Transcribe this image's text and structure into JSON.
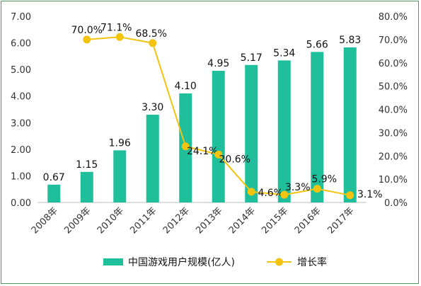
{
  "chart_data": {
    "type": "bar+line",
    "categories": [
      "2008年",
      "2009年",
      "2010年",
      "2011年",
      "2012年",
      "2013年",
      "2014年",
      "2015年",
      "2016年",
      "2017年"
    ],
    "series": [
      {
        "name": "中国游戏用户规模(亿人)",
        "type": "bar",
        "axis": "left",
        "color": "#1fbf9c",
        "values": [
          0.67,
          1.15,
          1.96,
          3.3,
          4.1,
          4.95,
          5.17,
          5.34,
          5.66,
          5.83
        ],
        "labels": [
          "0.67",
          "1.15",
          "1.96",
          "3.30",
          "4.10",
          "4.95",
          "5.17",
          "5.34",
          "5.66",
          "5.83"
        ]
      },
      {
        "name": "增长率",
        "type": "line",
        "axis": "right",
        "color": "#f2c40f",
        "values": [
          null,
          70.0,
          71.1,
          68.5,
          24.1,
          20.6,
          4.6,
          3.3,
          5.9,
          3.1
        ],
        "labels": [
          null,
          "70.0%",
          "71.1%",
          "68.5%",
          "24.1%",
          "20.6%",
          "4.6%",
          "3.3%",
          "5.9%",
          "3.1%"
        ]
      }
    ],
    "y_left": {
      "min": 0,
      "max": 7,
      "ticks": [
        "0.00",
        "1.00",
        "2.00",
        "3.00",
        "4.00",
        "5.00",
        "6.00",
        "7.00"
      ]
    },
    "y_right": {
      "min": 0,
      "max": 80,
      "ticks": [
        "0.0%",
        "10.0%",
        "20.0%",
        "30.0%",
        "40.0%",
        "50.0%",
        "60.0%",
        "70.0%",
        "80.0%"
      ]
    },
    "grid": false,
    "legend": "bottom"
  }
}
